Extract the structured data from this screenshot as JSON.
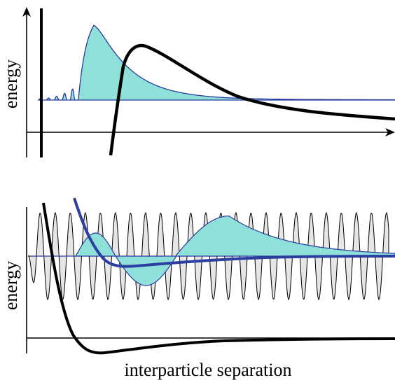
{
  "top_panel": {
    "ylabel": "energy"
  },
  "bottom_panel": {
    "ylabel": "energy"
  },
  "xlabel": "interparticle separation",
  "colors": {
    "potential": "#000000",
    "wavefunction_fill": "#8fe0d8",
    "wavefunction_stroke": "#2b3a9e",
    "effective_potential": "#2b3fa0",
    "free_wave_fill": "#e6e6e6",
    "free_wave_stroke": "#000000"
  }
}
